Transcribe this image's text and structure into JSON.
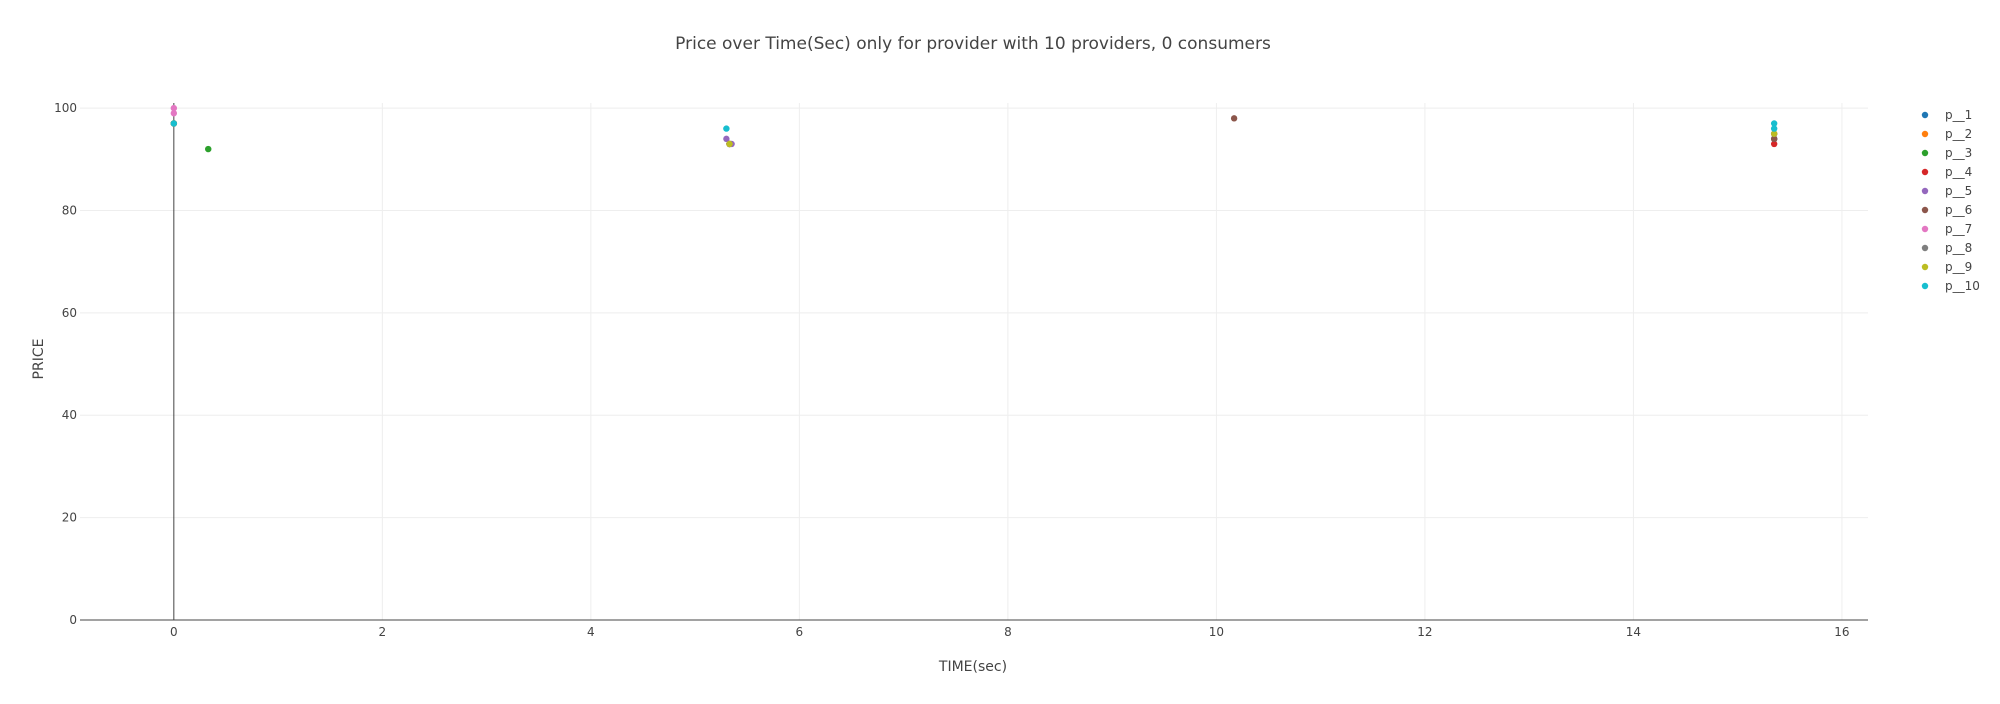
{
  "chart_data": {
    "type": "scatter",
    "title": "Price over Time(Sec) only for provider with 10 providers, 0 consumers",
    "xlabel": "TIME(sec)",
    "ylabel": "PRICE",
    "xlim": [
      -0.9,
      16.25
    ],
    "ylim": [
      0,
      101
    ],
    "xticks": [
      0,
      2,
      4,
      6,
      8,
      10,
      12,
      14,
      16
    ],
    "yticks": [
      0,
      20,
      40,
      60,
      80,
      100
    ],
    "grid": true,
    "legend_position": "right",
    "series": [
      {
        "name": "p__1",
        "color": "#1f77b4",
        "points": [
          [
            0,
            97
          ],
          [
            5.33,
            93
          ],
          [
            15.35,
            94
          ]
        ]
      },
      {
        "name": "p__2",
        "color": "#ff7f0e",
        "points": [
          [
            0,
            97
          ],
          [
            5.33,
            93
          ],
          [
            15.35,
            95
          ]
        ]
      },
      {
        "name": "p__3",
        "color": "#2ca02c",
        "points": [
          [
            0,
            97
          ],
          [
            0.33,
            92
          ],
          [
            5.33,
            93
          ],
          [
            15.35,
            94
          ]
        ]
      },
      {
        "name": "p__4",
        "color": "#d62728",
        "points": [
          [
            0,
            97
          ],
          [
            5.33,
            93
          ],
          [
            15.35,
            93
          ]
        ]
      },
      {
        "name": "p__5",
        "color": "#9467bd",
        "points": [
          [
            0,
            97
          ],
          [
            5.3,
            94
          ],
          [
            5.35,
            93
          ],
          [
            15.35,
            94
          ]
        ]
      },
      {
        "name": "p__6",
        "color": "#8c564b",
        "points": [
          [
            0,
            97
          ],
          [
            10.17,
            98
          ],
          [
            15.35,
            94
          ]
        ]
      },
      {
        "name": "p__7",
        "color": "#e377c2",
        "points": [
          [
            0,
            100
          ],
          [
            0,
            99
          ],
          [
            5.33,
            93
          ],
          [
            15.35,
            95
          ]
        ]
      },
      {
        "name": "p__8",
        "color": "#7f7f7f",
        "points": [
          [
            0,
            97
          ],
          [
            5.33,
            93
          ],
          [
            15.35,
            95
          ]
        ]
      },
      {
        "name": "p__9",
        "color": "#bcbd22",
        "points": [
          [
            0,
            97
          ],
          [
            5.33,
            93
          ],
          [
            15.35,
            95
          ]
        ]
      },
      {
        "name": "p__10",
        "color": "#17becf",
        "points": [
          [
            0,
            97
          ],
          [
            5.3,
            96
          ],
          [
            15.35,
            97
          ],
          [
            15.35,
            96
          ]
        ]
      }
    ]
  }
}
